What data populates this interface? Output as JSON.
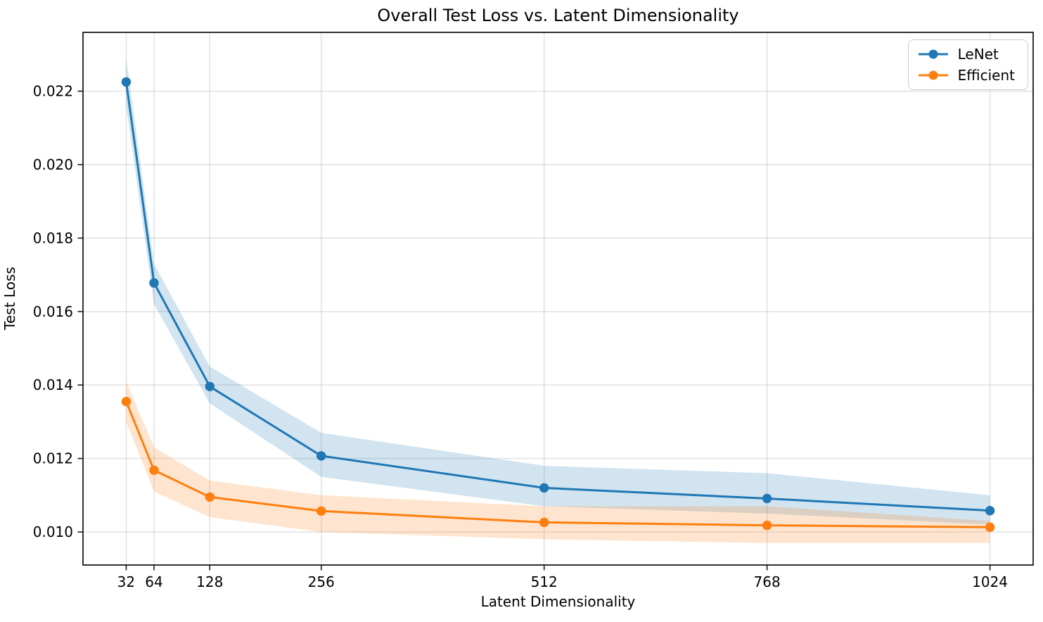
{
  "chart_data": {
    "type": "line",
    "title": "Overall Test Loss vs. Latent Dimensionality",
    "xlabel": "Latent Dimensionality",
    "ylabel": "Test Loss",
    "x": [
      32,
      64,
      128,
      256,
      512,
      768,
      1024
    ],
    "xtick_labels": [
      "32",
      "64",
      "128",
      "256",
      "512",
      "768",
      "1024"
    ],
    "yticks": [
      0.01,
      0.012,
      0.014,
      0.016,
      0.018,
      0.02,
      0.022
    ],
    "ytick_labels": [
      "0.010",
      "0.012",
      "0.014",
      "0.016",
      "0.018",
      "0.020",
      "0.022"
    ],
    "xlim": [
      -17.6,
      1073.6
    ],
    "ylim": [
      0.0091,
      0.0236
    ],
    "grid": true,
    "legend_position": "upper right",
    "band_alpha": 0.2,
    "series": [
      {
        "name": "LeNet",
        "color": "#1f77b4",
        "values": [
          0.02225,
          0.01678,
          0.01396,
          0.01207,
          0.0112,
          0.01091,
          0.01058
        ],
        "band_lower": [
          0.0216,
          0.0162,
          0.0135,
          0.0115,
          0.0107,
          0.0105,
          0.0102
        ],
        "band_upper": [
          0.0229,
          0.0173,
          0.0145,
          0.0127,
          0.0118,
          0.0116,
          0.011
        ]
      },
      {
        "name": "Efficient",
        "color": "#ff7f0e",
        "values": [
          0.01355,
          0.01168,
          0.01095,
          0.01057,
          0.01026,
          0.01018,
          0.01013
        ],
        "band_lower": [
          0.013,
          0.0111,
          0.0104,
          0.01,
          0.0098,
          0.0097,
          0.0097
        ],
        "band_upper": [
          0.0141,
          0.0123,
          0.0114,
          0.011,
          0.0107,
          0.0107,
          0.0103
        ]
      }
    ]
  }
}
